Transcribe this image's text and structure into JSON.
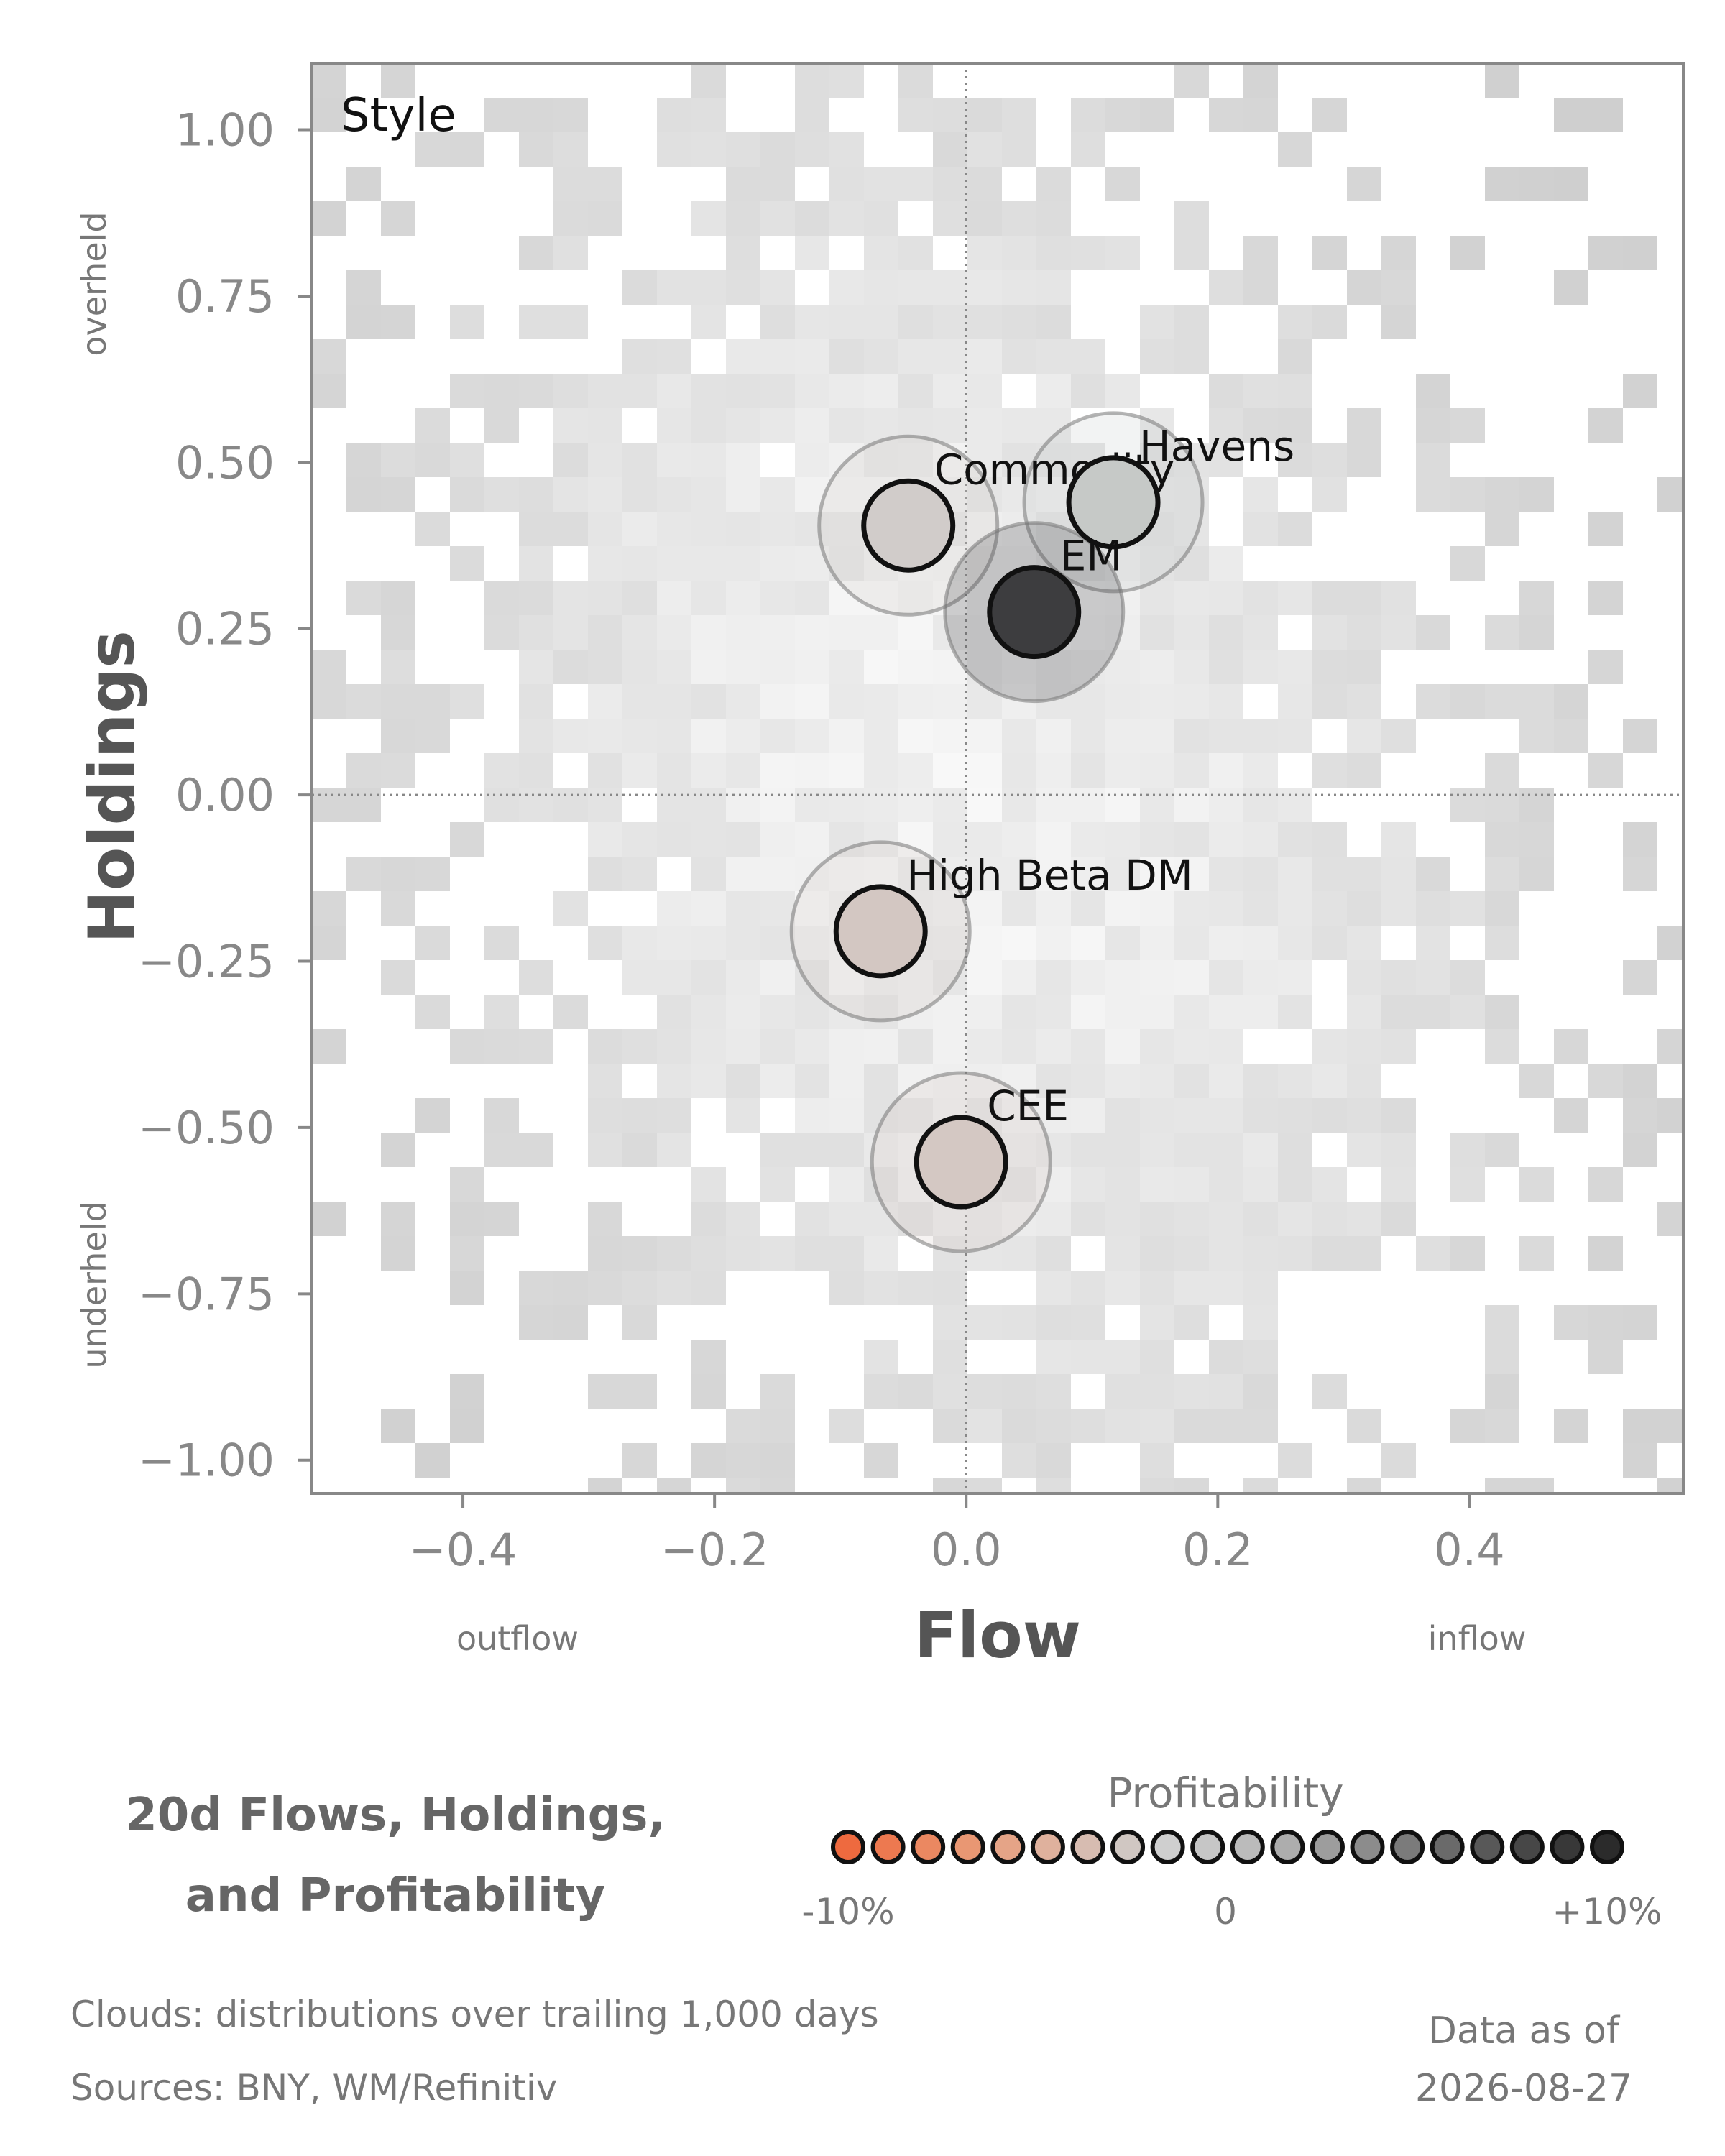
{
  "title_line1": "20d Flows, Holdings,",
  "title_line2": "and Profitability",
  "footnotes": {
    "clouds": "Clouds:  distributions over trailing 1,000 days",
    "sources": "Sources:  BNY, WM/Refinitiv"
  },
  "as_of": {
    "label": "Data as of",
    "date": "2026-08-27"
  },
  "chart_data": {
    "type": "scatter",
    "panel_label": "Style",
    "xlabel": "Flow",
    "ylabel": "Holdings",
    "x_low_label": "outflow",
    "x_high_label": "inflow",
    "y_high_label": "overheld",
    "y_low_label": "underheld",
    "xlim": [
      -0.52,
      0.57
    ],
    "ylim": [
      -1.05,
      1.1
    ],
    "x_ticks": [
      -0.4,
      -0.2,
      0.0,
      0.2,
      0.4
    ],
    "x_tick_labels": [
      "−0.4",
      "−0.2",
      "0.0",
      "0.2",
      "0.4"
    ],
    "y_ticks": [
      1.0,
      0.75,
      0.5,
      0.25,
      0.0,
      -0.25,
      -0.5,
      -0.75,
      -1.0
    ],
    "y_tick_labels": [
      "1.00",
      "0.75",
      "0.50",
      "0.25",
      "0.00",
      "−0.25",
      "−0.50",
      "−0.75",
      "−1.00"
    ],
    "grid": false,
    "reference_lines": {
      "x": 0.0,
      "y": 0.0
    },
    "points": [
      {
        "label": "Commodity",
        "x": -0.046,
        "y": 0.405,
        "color": "#d1ccca"
      },
      {
        "label": "Havens",
        "x": 0.117,
        "y": 0.44,
        "color": "#c6c9c7"
      },
      {
        "label": "EM",
        "x": 0.054,
        "y": 0.275,
        "color": "#3d3d3f"
      },
      {
        "label": "High Beta DM",
        "x": -0.068,
        "y": -0.205,
        "color": "#d3c7c2"
      },
      {
        "label": "CEE",
        "x": -0.004,
        "y": -0.552,
        "color": "#d4c8c3"
      }
    ],
    "legend": {
      "title": "Profitability",
      "tick_labels": [
        "-10%",
        "0",
        "+10%"
      ],
      "colors": [
        "#ee6a3f",
        "#ed7950",
        "#eb8861",
        "#e99773",
        "#e5a487",
        "#dfb19d",
        "#d7bcb1",
        "#d0c7c2",
        "#cfcfcf",
        "#c6c6c6",
        "#bbbbbb",
        "#adadad",
        "#9d9d9d",
        "#8c8c8c",
        "#7b7b7b",
        "#6a6a6a",
        "#585858",
        "#474747",
        "#383838",
        "#2b2b2b"
      ]
    }
  }
}
